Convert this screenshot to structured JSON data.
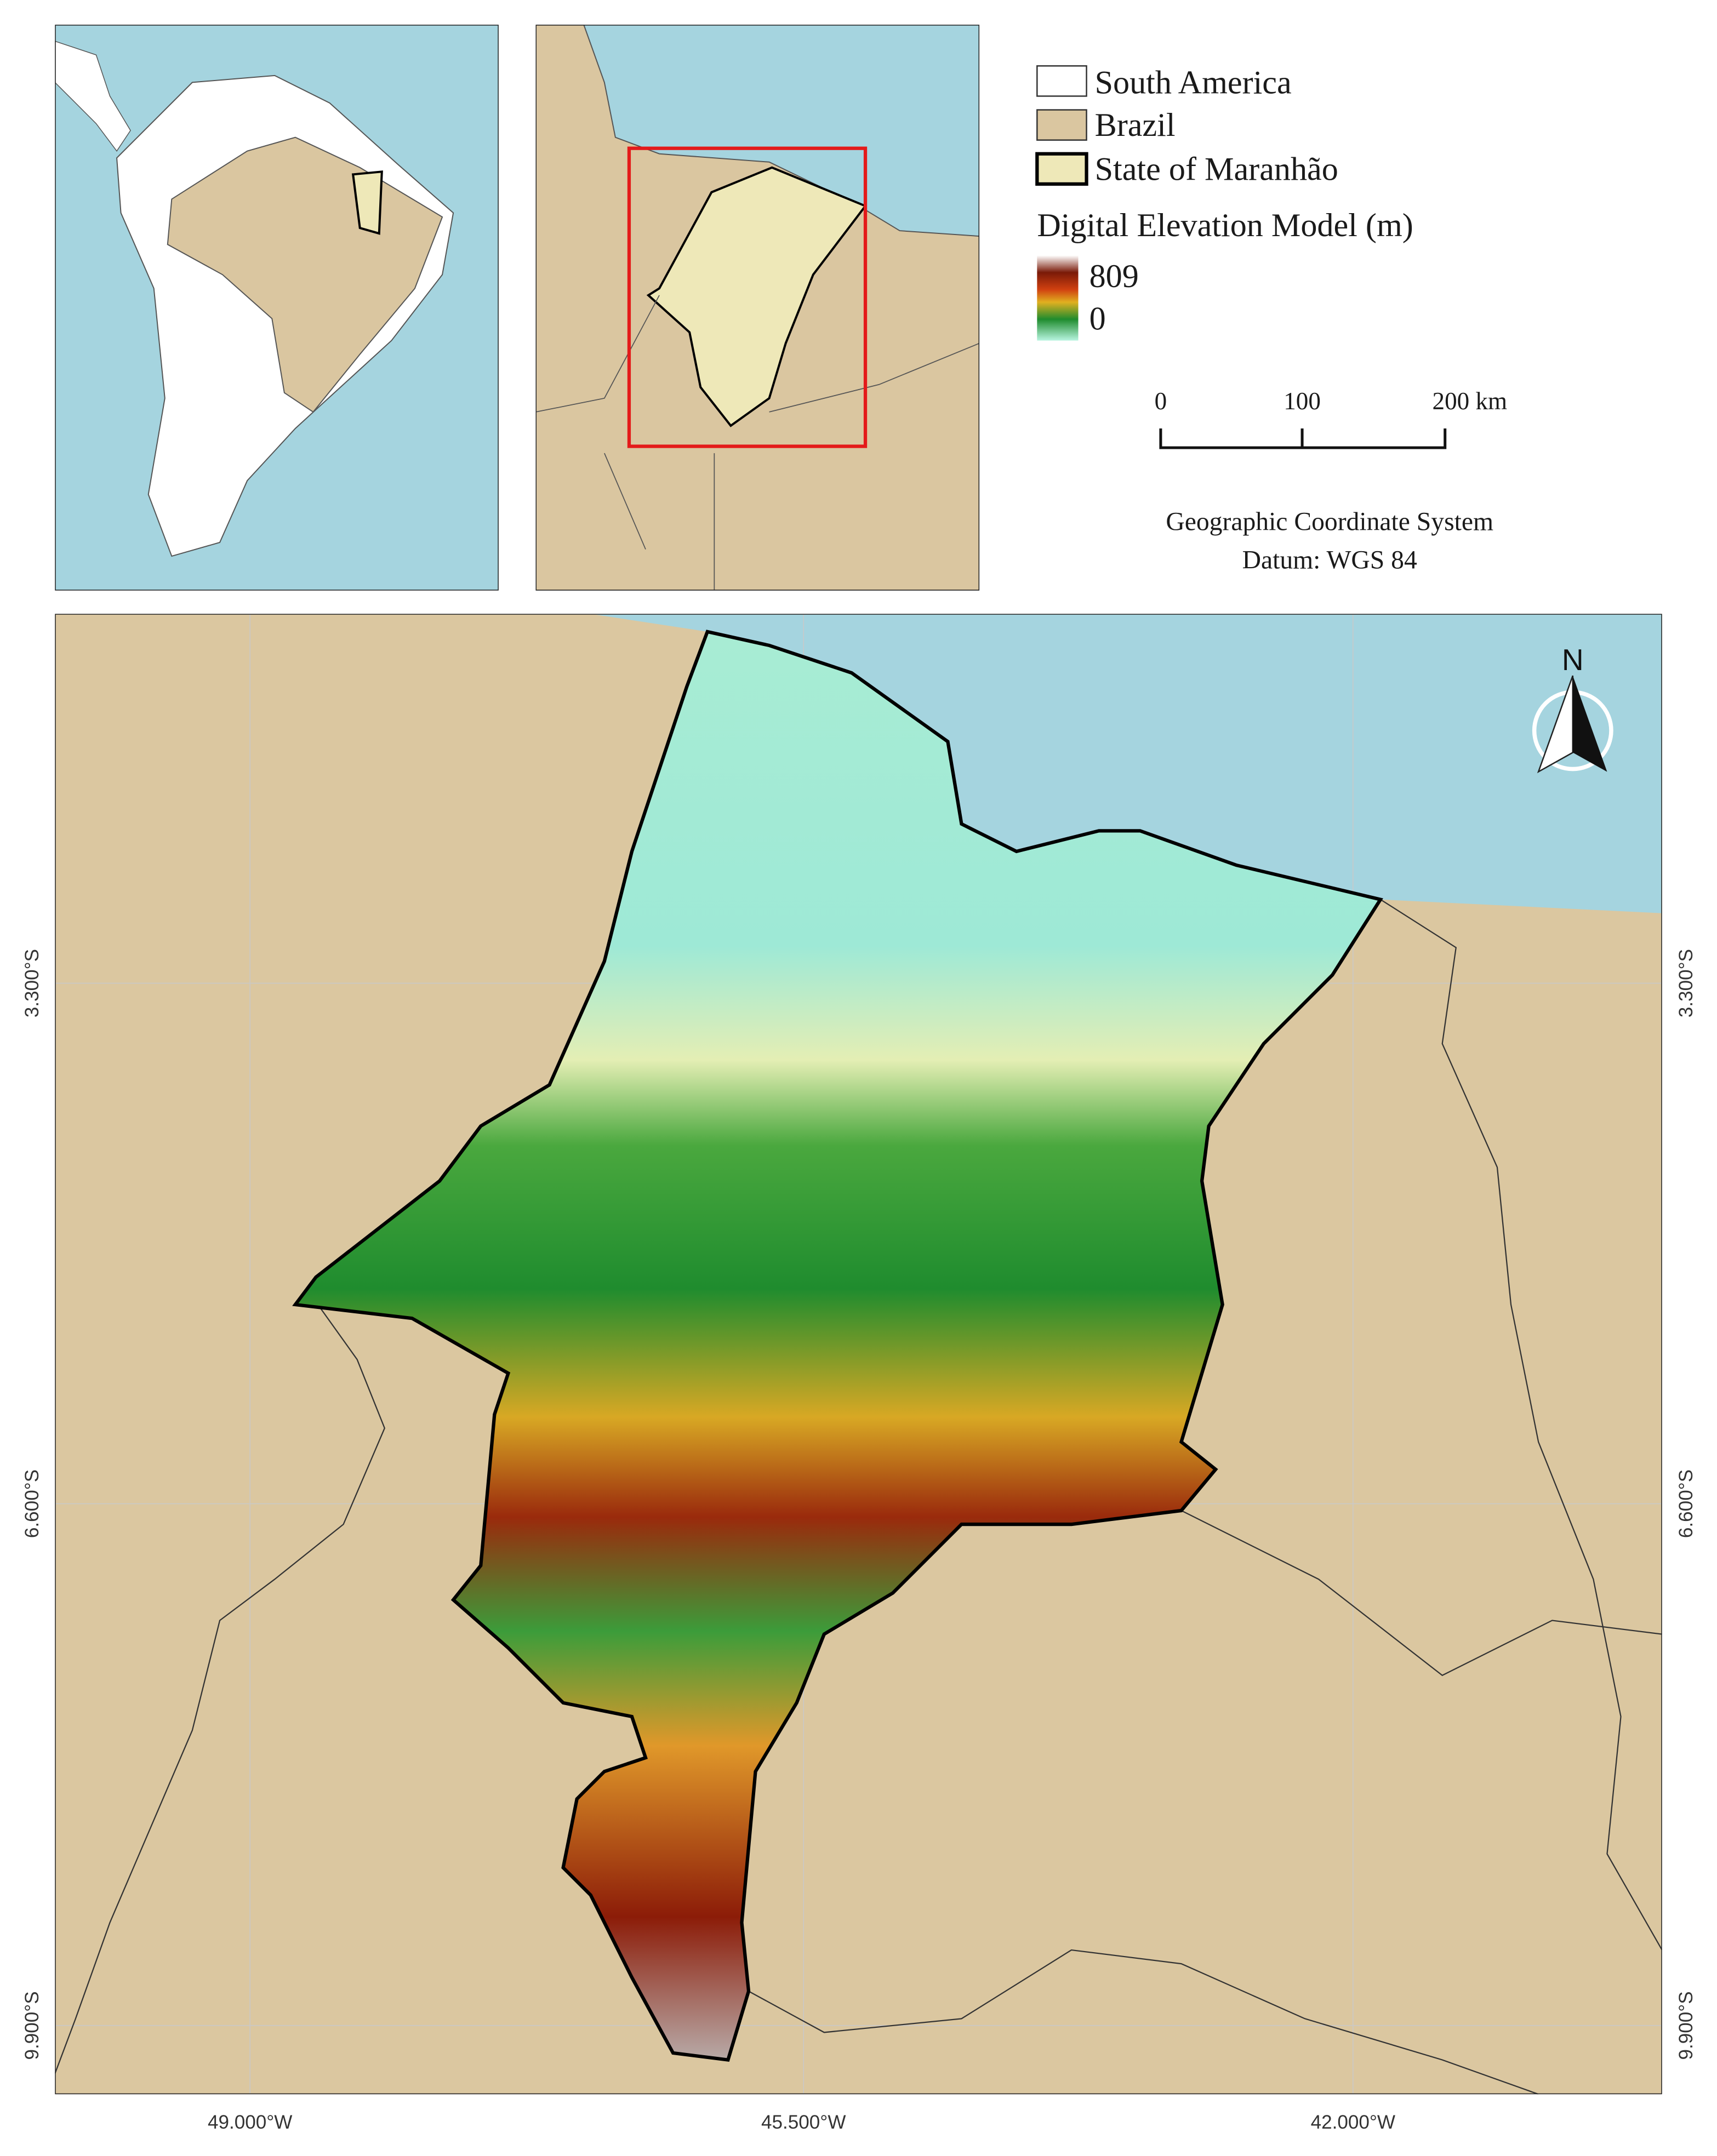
{
  "legend": {
    "items": [
      "South America",
      "Brazil",
      "State of Maranhão"
    ],
    "dem_title": "Digital Elevation Model (m)",
    "dem_max": 809,
    "dem_min": 0
  },
  "scale_bar": {
    "labels": [
      "0",
      "100",
      "200 km"
    ]
  },
  "crs": {
    "lines": [
      "Geographic Coordinate System",
      "Datum: WGS 84"
    ]
  },
  "graticule": {
    "latitude_labels": [
      "3.300°S",
      "6.600°S",
      "9.900°S"
    ],
    "longitude_labels": [
      "49.000°W",
      "45.500°W",
      "42.000°W"
    ]
  },
  "north_arrow": {
    "label": "N"
  }
}
